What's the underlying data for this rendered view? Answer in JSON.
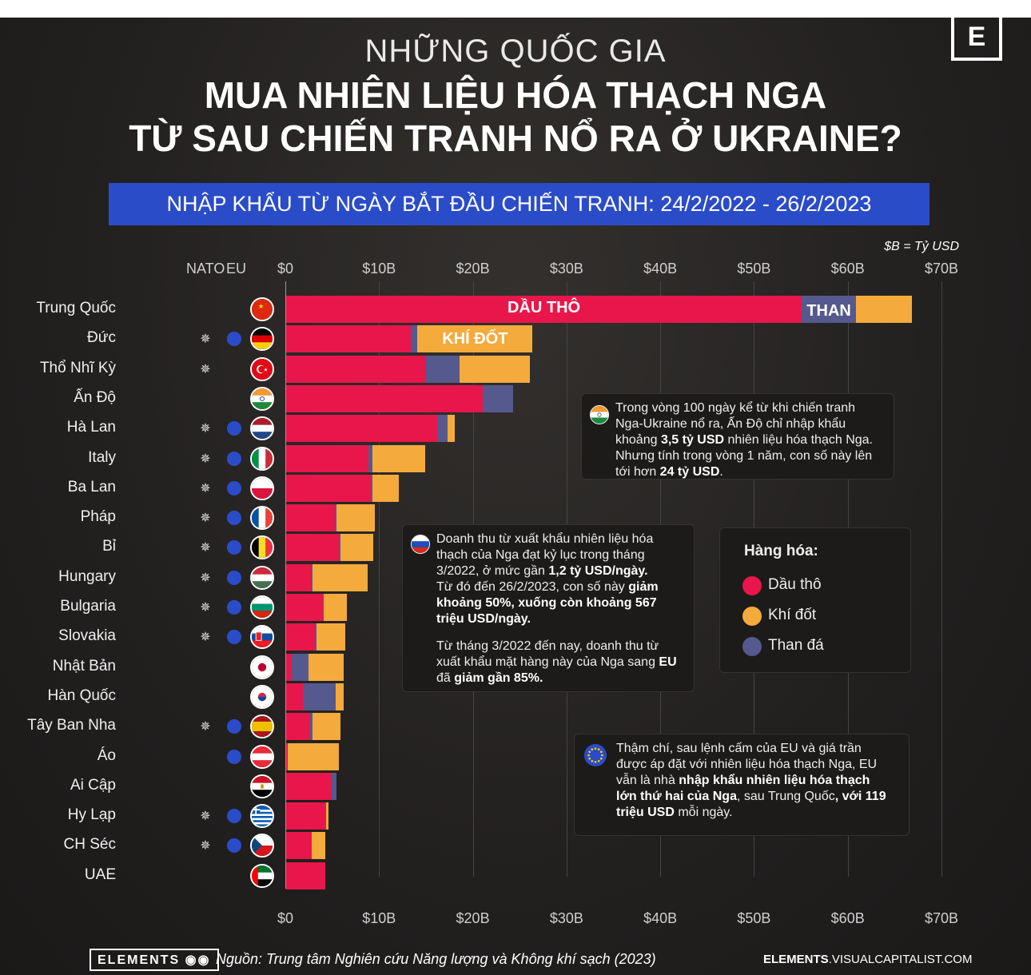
{
  "title": {
    "line1": "NHỮNG QUỐC GIA",
    "line2": "MUA NHIÊN LIỆU HÓA THẠCH NGA",
    "line3": "TỪ SAU CHIẾN TRANH NỔ RA Ở UKRAINE?"
  },
  "brand_letter": "E",
  "banner": "NHẬP KHẨU TỪ NGÀY BẮT ĐẦU CHIẾN TRANH: 24/2/2022 - 26/2/2023",
  "unit_note": "$B = Tỷ USD",
  "col_headers": {
    "nato": "NATO",
    "eu": "EU"
  },
  "colors": {
    "oil": "#e8164a",
    "gas": "#f5aa3c",
    "coal": "#55598d",
    "banner": "#2b4cc9"
  },
  "chart_data": {
    "type": "bar",
    "orientation": "horizontal",
    "stacked": true,
    "xlim": [
      0,
      70
    ],
    "ticks": [
      "$0",
      "$10B",
      "$20B",
      "$30B",
      "$40B",
      "$50B",
      "$60B",
      "$70B"
    ],
    "series_names": [
      "Dầu thô",
      "Than đá",
      "Khí đốt"
    ],
    "inline_labels": {
      "oil": "DẦU THÔ",
      "coal": "THAN",
      "gas": "KHÍ ĐỐT"
    },
    "rows": [
      {
        "country": "Trung Quốc",
        "flag": "cn",
        "nato": false,
        "eu": false,
        "oil": 55,
        "coal": 5.8,
        "gas": 6
      },
      {
        "country": "Đức",
        "flag": "de",
        "nato": true,
        "eu": true,
        "oil": 13.3,
        "coal": 0.7,
        "gas": 12.3
      },
      {
        "country": "Thổ Nhĩ Kỳ",
        "flag": "tr",
        "nato": true,
        "eu": false,
        "oil": 14.9,
        "coal": 3.6,
        "gas": 7.5
      },
      {
        "country": "Ấn Độ",
        "flag": "in",
        "nato": false,
        "eu": false,
        "oil": 21,
        "coal": 3.2,
        "gas": 0
      },
      {
        "country": "Hà Lan",
        "flag": "nl",
        "nato": true,
        "eu": true,
        "oil": 16.2,
        "coal": 1,
        "gas": 0.8
      },
      {
        "country": "Italy",
        "flag": "it",
        "nato": true,
        "eu": true,
        "oil": 8.8,
        "coal": 0.4,
        "gas": 5.6
      },
      {
        "country": "Ba Lan",
        "flag": "pl",
        "nato": true,
        "eu": true,
        "oil": 9,
        "coal": 0.2,
        "gas": 2.8
      },
      {
        "country": "Pháp",
        "flag": "fr",
        "nato": true,
        "eu": true,
        "oil": 5.2,
        "coal": 0.2,
        "gas": 4.1
      },
      {
        "country": "Bỉ",
        "flag": "be",
        "nato": true,
        "eu": true,
        "oil": 5.6,
        "coal": 0.2,
        "gas": 3.5
      },
      {
        "country": "Hungary",
        "flag": "hu",
        "nato": true,
        "eu": true,
        "oil": 2.7,
        "coal": 0.1,
        "gas": 5.9
      },
      {
        "country": "Bulgaria",
        "flag": "bg",
        "nato": true,
        "eu": true,
        "oil": 3.9,
        "coal": 0.1,
        "gas": 2.5
      },
      {
        "country": "Slovakia",
        "flag": "sk",
        "nato": true,
        "eu": true,
        "oil": 3.1,
        "coal": 0.1,
        "gas": 3.1
      },
      {
        "country": "Nhật Bản",
        "flag": "jp",
        "nato": false,
        "eu": false,
        "oil": 0.6,
        "coal": 1.8,
        "gas": 3.7
      },
      {
        "country": "Hàn Quốc",
        "flag": "kr",
        "nato": false,
        "eu": false,
        "oil": 1.8,
        "coal": 3.5,
        "gas": 0.8
      },
      {
        "country": "Tây Ban Nha",
        "flag": "es",
        "nato": true,
        "eu": true,
        "oil": 2.6,
        "coal": 0.2,
        "gas": 3
      },
      {
        "country": "Áo",
        "flag": "at",
        "nato": false,
        "eu": true,
        "oil": 0.2,
        "coal": 0,
        "gas": 5.4
      },
      {
        "country": "Ai Cập",
        "flag": "eg",
        "nato": false,
        "eu": false,
        "oil": 4.9,
        "coal": 0.5,
        "gas": 0
      },
      {
        "country": "Hy Lạp",
        "flag": "gr",
        "nato": true,
        "eu": true,
        "oil": 4.3,
        "coal": 0,
        "gas": 0.2
      },
      {
        "country": "CH Séc",
        "flag": "cz",
        "nato": true,
        "eu": true,
        "oil": 2.7,
        "coal": 0,
        "gas": 1.5
      },
      {
        "country": "UAE",
        "flag": "ae",
        "nato": false,
        "eu": false,
        "oil": 4.2,
        "coal": 0,
        "gas": 0
      }
    ]
  },
  "notes": {
    "india": {
      "line1": "Trong vòng 100 ngày kể từ khi chiến tranh",
      "line2": "Nga-Ukraine nổ ra, Ấn Độ chỉ nhập khẩu",
      "line3_pre": "khoảng ",
      "line3_bold": "3,5 tỷ USD",
      "line3_post": " nhiên liệu hóa thạch Nga.",
      "line4": "Nhưng tính trong vòng 1 năm, con số này lên",
      "line5_pre": "tới hơn ",
      "line5_bold": "24 tỷ USD",
      "line5_post": "."
    },
    "russia": {
      "line1": "Doanh thu từ xuất khẩu nhiên liệu hóa",
      "line2": "thạch của Nga đạt kỷ lục trong tháng",
      "line3_pre": "3/2022, ở mức gần ",
      "line3_bold": "1,2 tỷ USD/ngày.",
      "line4_pre": "Từ đó đến 26/2/2023, con số này ",
      "line4_bold": "giảm",
      "line5_bold": "khoảng 50%, xuống còn khoảng 567",
      "line6_bold": "triệu USD/ngày.",
      "line7": "Từ tháng 3/2022 đến nay, doanh thu từ",
      "line8_pre": "xuất khẩu mặt hàng này của Nga sang ",
      "line8_bold": "EU",
      "line9_pre": "đã ",
      "line9_bold": "giảm gần 85%."
    },
    "eu": {
      "line1": "Thậm chí, sau lệnh cấm của EU và giá trần",
      "line2": "được áp đặt với nhiên liệu hóa thạch Nga, EU",
      "line3_pre": "vẫn là nhà ",
      "line3_bold": "nhập khẩu nhiên liệu hóa thạch",
      "line4_bold": "lớn thứ hai của Nga",
      "line4_post": ", sau Trung Quốc",
      "line4_bold2": ", với 119",
      "line5_bold": "triệu USD",
      "line5_post": " mỗi ngày."
    }
  },
  "legend": {
    "title": "Hàng hóa:",
    "items": [
      {
        "label": "Dầu thô",
        "key": "oil"
      },
      {
        "label": "Khí đốt",
        "key": "gas"
      },
      {
        "label": "Than đá",
        "key": "coal"
      }
    ]
  },
  "footer": {
    "logo": "ELEMENTS",
    "source": "Nguồn: Trung tâm Nghiên cứu Năng lượng và Không khí sạch (2023)",
    "url_bold": "ELEMENTS",
    "url_rest": ".VISUALCAPITALIST.COM"
  }
}
